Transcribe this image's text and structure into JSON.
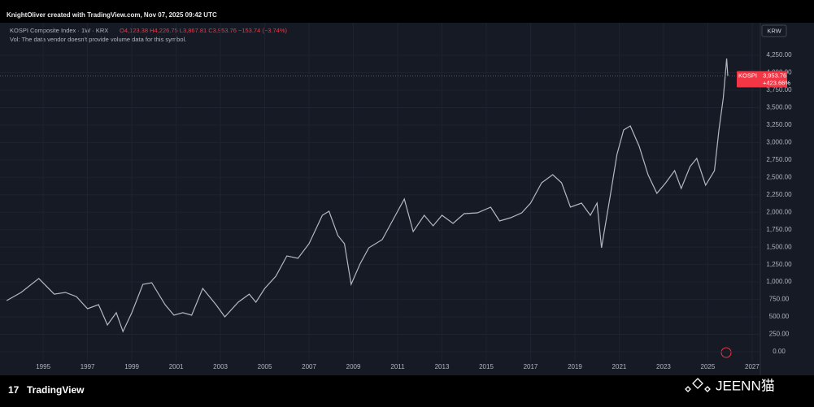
{
  "header": {
    "credit": "KnightOliver created with TradingView.com, Nov 07, 2025 09:42 UTC"
  },
  "chart_data": {
    "type": "line",
    "symbol_title": "KOSPI Composite Index · 1W · KRX",
    "ohlc": "O4,123.38 H4,226.75 L3,867.81 C3,953.76 −153.74 (−3.74%)",
    "volume_note": "Vol: The data vendor doesn't provide volume data for this symbol.",
    "currency": "KRW",
    "series": [
      {
        "name": "KOSPI",
        "color": "#b4b8c2",
        "x": [
          1993.35,
          1994.0,
          1994.8,
          1995.5,
          1996.0,
          1996.5,
          1997.0,
          1997.5,
          1997.9,
          1998.3,
          1998.6,
          1999.0,
          1999.5,
          1999.9,
          2000.5,
          2000.9,
          2001.3,
          2001.7,
          2002.2,
          2002.8,
          2003.2,
          2003.8,
          2004.3,
          2004.6,
          2005.0,
          2005.5,
          2006.0,
          2006.5,
          2007.0,
          2007.6,
          2007.9,
          2008.3,
          2008.6,
          2008.9,
          2009.3,
          2009.7,
          2010.3,
          2010.9,
          2011.3,
          2011.7,
          2012.2,
          2012.6,
          2013.0,
          2013.5,
          2014.0,
          2014.6,
          2015.2,
          2015.6,
          2016.1,
          2016.6,
          2017.0,
          2017.5,
          2018.0,
          2018.4,
          2018.8,
          2019.3,
          2019.7,
          2020.0,
          2020.2,
          2020.6,
          2020.9,
          2021.2,
          2021.5,
          2021.9,
          2022.3,
          2022.7,
          2023.1,
          2023.5,
          2023.8,
          2024.2,
          2024.5,
          2024.9,
          2025.3,
          2025.5,
          2025.7,
          2025.85,
          2025.9
        ],
        "values": [
          733,
          850,
          1050,
          826,
          850,
          790,
          617,
          675,
          384,
          560,
          290,
          560,
          966,
          990,
          675,
          524,
          560,
          524,
          908,
          675,
          500,
          710,
          826,
          710,
          908,
          1083,
          1374,
          1339,
          1549,
          1956,
          2015,
          1665,
          1549,
          966,
          1257,
          1490,
          1607,
          1956,
          2189,
          1723,
          1956,
          1805,
          1956,
          1840,
          1980,
          1991,
          2073,
          1875,
          1921,
          1991,
          2131,
          2422,
          2538,
          2422,
          2073,
          2131,
          1956,
          2131,
          1490,
          2247,
          2829,
          3179,
          3237,
          2946,
          2538,
          2271,
          2422,
          2597,
          2341,
          2655,
          2771,
          2387,
          2597,
          3179,
          3644,
          4203,
          3953.76
        ]
      }
    ],
    "price_tag": {
      "value": 3953.76,
      "label": "3,953.76",
      "change": "+423.66%",
      "color": "#f23645"
    },
    "xlim": [
      1993.05,
      2027.37
    ],
    "xticks": [
      1995,
      1997,
      1999,
      2001,
      2003,
      2005,
      2007,
      2009,
      2011,
      2013,
      2015,
      2017,
      2019,
      2021,
      2023,
      2025,
      2027
    ],
    "ylim": [
      -140,
      4693
    ],
    "yticks": [
      {
        "value": 0,
        "label": "0.00"
      },
      {
        "value": 250,
        "label": "250.00"
      },
      {
        "value": 500,
        "label": "500.00"
      },
      {
        "value": 750,
        "label": "750.00"
      },
      {
        "value": 1000,
        "label": "1,000.00"
      },
      {
        "value": 1250,
        "label": "1,250.00"
      },
      {
        "value": 1500,
        "label": "1,500.00"
      },
      {
        "value": 1750,
        "label": "1,750.00"
      },
      {
        "value": 2000,
        "label": "2,000.00"
      },
      {
        "value": 2250,
        "label": "2,250.00"
      },
      {
        "value": 2500,
        "label": "2,500.00"
      },
      {
        "value": 2750,
        "label": "2,750.00"
      },
      {
        "value": 3000,
        "label": "3,000.00"
      },
      {
        "value": 3250,
        "label": "3,250.00"
      },
      {
        "value": 3500,
        "label": "3,500.00"
      },
      {
        "value": 3750,
        "label": "3,750.00"
      },
      {
        "value": 4000,
        "label": "4,000.00"
      },
      {
        "value": 4250,
        "label": "4,250.00"
      }
    ],
    "grid": true
  },
  "footer": {
    "brand": "TradingView",
    "watermark": "JEENN猫"
  }
}
